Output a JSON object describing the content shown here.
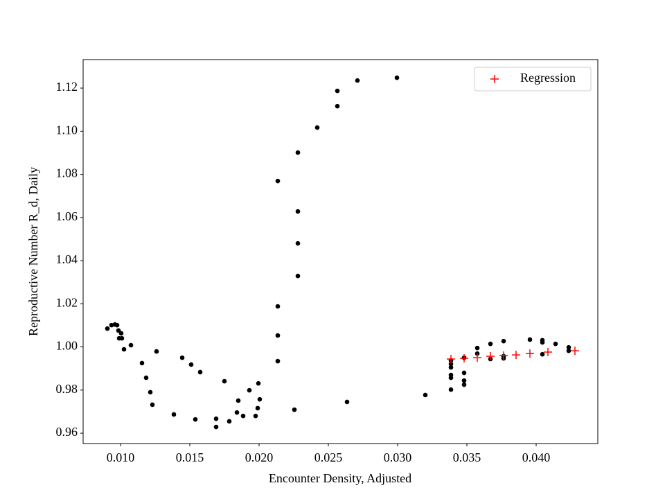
{
  "chart_data": {
    "type": "scatter",
    "xlabel": "Encounter Density, Adjusted",
    "ylabel": "Reproductive Number R_d, Daily",
    "xlim": [
      0.0073,
      0.04445
    ],
    "ylim": [
      0.9552,
      1.1332
    ],
    "xticks": [
      {
        "value": 0.01,
        "label": "0.010"
      },
      {
        "value": 0.015,
        "label": "0.015"
      },
      {
        "value": 0.02,
        "label": "0.020"
      },
      {
        "value": 0.025,
        "label": "0.025"
      },
      {
        "value": 0.03,
        "label": "0.030"
      },
      {
        "value": 0.035,
        "label": "0.035"
      },
      {
        "value": 0.04,
        "label": "0.040"
      }
    ],
    "yticks": [
      0.96,
      0.98,
      {
        "value": 1.0,
        "label": "1.00"
      },
      1.02,
      1.04,
      1.06,
      1.08,
      {
        "value": 1.1,
        "label": "1.10"
      },
      1.12
    ],
    "grid": false,
    "legend": "upper right",
    "series": [
      {
        "color": "#000000",
        "marker": "dot",
        "x": [
          0.00905,
          0.00935,
          0.0096,
          0.00975,
          0.00985,
          0.01005,
          0.0099,
          0.0101,
          0.01025,
          0.01075,
          0.01155,
          0.01185,
          0.01215,
          0.0123,
          0.0126,
          0.01385,
          0.01445,
          0.0151,
          0.0154,
          0.01575,
          0.0169,
          0.0169,
          0.0175,
          0.01785,
          0.0184,
          0.0185,
          0.01885,
          0.0193,
          0.01975,
          0.0199,
          0.01995,
          0.02005,
          0.02135,
          0.02135,
          0.02135,
          0.02135,
          0.02255,
          0.0228,
          0.0228,
          0.0228,
          0.0228,
          0.0242,
          0.02565,
          0.02565,
          0.02635,
          0.0271,
          0.02995,
          0.032,
          0.03385,
          0.03385,
          0.03385,
          0.03385,
          0.03385,
          0.03385,
          0.0348,
          0.0348,
          0.0348,
          0.0348,
          0.03575,
          0.03575,
          0.0367,
          0.0367,
          0.03765,
          0.03765,
          0.03765,
          0.03955,
          0.04045,
          0.04045,
          0.04045,
          0.0414,
          0.04235,
          0.04235
        ],
        "values": [
          1.0085,
          1.0101,
          1.0104,
          1.0101,
          1.0076,
          1.0063,
          1.004,
          1.004,
          0.9989,
          1.0008,
          0.9925,
          0.9857,
          0.979,
          0.9732,
          0.9979,
          0.9687,
          0.995,
          0.9918,
          0.9664,
          0.9883,
          0.9629,
          0.9667,
          0.9841,
          0.9655,
          0.9696,
          0.9751,
          0.968,
          0.9799,
          0.968,
          0.9716,
          0.9831,
          0.9757,
          1.0769,
          1.0188,
          1.0053,
          0.9934,
          0.9709,
          1.0901,
          1.0628,
          1.048,
          1.0329,
          1.1017,
          1.1187,
          1.1116,
          0.9745,
          1.1235,
          1.1248,
          0.9777,
          0.9937,
          0.9921,
          0.9905,
          0.987,
          0.9857,
          0.9802,
          0.995,
          0.988,
          0.9844,
          0.9825,
          0.9995,
          0.9969,
          1.0014,
          0.9944,
          1.0027,
          0.9957,
          0.9947,
          1.0034,
          1.0031,
          1.0021,
          0.9966,
          1.0014,
          0.9998,
          0.9982
        ]
      },
      {
        "name": "Regression",
        "color": "#ff0000",
        "marker": "plus",
        "x": [
          0.03385,
          0.0348,
          0.03575,
          0.0367,
          0.03765,
          0.03855,
          0.03955,
          0.04085,
          0.0428
        ],
        "values": [
          0.9944,
          0.9947,
          0.995,
          0.9957,
          0.996,
          0.9963,
          0.9969,
          0.9976,
          0.9982
        ]
      }
    ]
  }
}
